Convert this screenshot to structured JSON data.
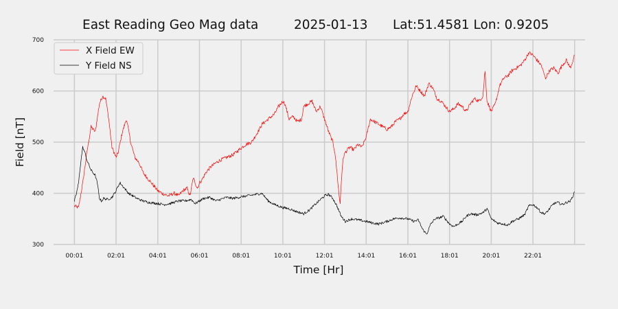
{
  "chart_data": {
    "type": "line",
    "title_parts": [
      "East Reading Geo Mag data",
      "2025-01-13",
      "Lat:51.4581  Lon: 0.9205"
    ],
    "xlabel": "Time  [Hr]",
    "ylabel": "Field  [nT]",
    "xlim": [
      -1,
      24.5
    ],
    "ylim": [
      300,
      700
    ],
    "x_ticks": [
      0,
      2,
      4,
      6,
      8,
      10,
      12,
      14,
      16,
      18,
      20,
      22
    ],
    "x_tick_labels": [
      "00:01",
      "02:01",
      "04:01",
      "06:01",
      "08:01",
      "10:01",
      "12:01",
      "14:01",
      "16:01",
      "18:01",
      "20:01",
      "22:01"
    ],
    "extra_gridlines_x": [
      24
    ],
    "y_ticks": [
      300,
      400,
      500,
      600,
      700
    ],
    "y_tick_labels": [
      "300",
      "400",
      "500",
      "600",
      "700"
    ],
    "grid": true,
    "legend_position": "top-left",
    "series": [
      {
        "name": "X Field EW",
        "color": "#ff0000",
        "x": [
          0,
          0.2,
          0.4,
          0.6,
          0.8,
          1.0,
          1.2,
          1.35,
          1.5,
          1.65,
          1.8,
          2.0,
          2.1,
          2.3,
          2.5,
          2.7,
          2.9,
          3.1,
          3.3,
          3.5,
          3.8,
          4.0,
          4.2,
          4.5,
          4.8,
          5.0,
          5.2,
          5.4,
          5.55,
          5.7,
          5.9,
          6.0,
          6.1,
          6.3,
          6.5,
          6.8,
          7.0,
          7.3,
          7.6,
          7.9,
          8.2,
          8.5,
          8.8,
          9.0,
          9.3,
          9.6,
          9.8,
          10.0,
          10.1,
          10.2,
          10.3,
          10.5,
          10.7,
          10.9,
          11.0,
          11.2,
          11.4,
          11.6,
          11.8,
          12.0,
          12.2,
          12.4,
          12.5,
          12.6,
          12.7,
          12.75,
          12.8,
          12.9,
          13.0,
          13.2,
          13.4,
          13.6,
          13.8,
          14.0,
          14.2,
          14.4,
          14.6,
          14.8,
          15.0,
          15.2,
          15.4,
          15.6,
          15.8,
          16.0,
          16.2,
          16.4,
          16.6,
          16.8,
          17.0,
          17.2,
          17.4,
          17.6,
          17.8,
          18.0,
          18.2,
          18.4,
          18.6,
          18.8,
          19.0,
          19.2,
          19.4,
          19.6,
          19.7,
          19.8,
          20.0,
          20.2,
          20.4,
          20.6,
          20.8,
          21.0,
          21.2,
          21.4,
          21.6,
          21.8,
          22.0,
          22.2,
          22.4,
          22.6,
          22.8,
          23.0,
          23.2,
          23.4,
          23.6,
          23.8,
          24.0
        ],
        "values": [
          375,
          372,
          420,
          480,
          530,
          520,
          575,
          590,
          585,
          545,
          490,
          470,
          480,
          520,
          545,
          500,
          470,
          460,
          440,
          430,
          415,
          405,
          400,
          395,
          400,
          395,
          405,
          410,
          395,
          430,
          410,
          420,
          425,
          440,
          450,
          460,
          465,
          470,
          475,
          485,
          495,
          500,
          520,
          535,
          545,
          555,
          570,
          580,
          575,
          560,
          545,
          550,
          540,
          545,
          570,
          575,
          580,
          560,
          570,
          545,
          520,
          500,
          480,
          440,
          395,
          380,
          420,
          470,
          480,
          490,
          485,
          495,
          490,
          510,
          545,
          540,
          535,
          530,
          525,
          530,
          540,
          545,
          555,
          560,
          590,
          610,
          600,
          590,
          615,
          605,
          585,
          580,
          570,
          560,
          565,
          575,
          570,
          560,
          575,
          585,
          580,
          590,
          640,
          580,
          560,
          575,
          610,
          625,
          630,
          640,
          645,
          650,
          660,
          675,
          670,
          660,
          650,
          625,
          640,
          645,
          635,
          650,
          660,
          645,
          670
        ]
      },
      {
        "name": "Y Field NS",
        "color": "#000000",
        "x": [
          0,
          0.1,
          0.2,
          0.3,
          0.4,
          0.5,
          0.6,
          0.8,
          1.0,
          1.1,
          1.2,
          1.3,
          1.4,
          1.6,
          1.8,
          2.0,
          2.1,
          2.2,
          2.4,
          2.6,
          2.8,
          3.0,
          3.3,
          3.6,
          4.0,
          4.3,
          4.6,
          5.0,
          5.3,
          5.6,
          5.8,
          6.0,
          6.2,
          6.5,
          6.8,
          7.0,
          7.3,
          7.6,
          8.0,
          8.3,
          8.6,
          9.0,
          9.3,
          9.6,
          10.0,
          10.3,
          10.6,
          11.0,
          11.3,
          11.6,
          12.0,
          12.2,
          12.4,
          12.6,
          12.8,
          13.0,
          13.3,
          13.6,
          14.0,
          14.3,
          14.6,
          15.0,
          15.3,
          15.6,
          16.0,
          16.3,
          16.5,
          16.7,
          16.9,
          17.1,
          17.3,
          17.5,
          17.7,
          18.0,
          18.2,
          18.4,
          18.6,
          18.8,
          19.0,
          19.3,
          19.6,
          19.8,
          20.0,
          20.3,
          20.6,
          20.8,
          21.0,
          21.3,
          21.6,
          21.8,
          22.0,
          22.2,
          22.4,
          22.6,
          22.8,
          23.0,
          23.2,
          23.4,
          23.6,
          23.8,
          24.0
        ],
        "values": [
          385,
          400,
          420,
          460,
          490,
          480,
          465,
          445,
          435,
          420,
          390,
          385,
          390,
          388,
          392,
          405,
          415,
          420,
          410,
          400,
          395,
          390,
          385,
          382,
          380,
          378,
          380,
          385,
          385,
          388,
          380,
          385,
          390,
          392,
          385,
          388,
          392,
          390,
          393,
          395,
          397,
          400,
          385,
          378,
          372,
          370,
          365,
          360,
          368,
          380,
          395,
          398,
          390,
          375,
          355,
          345,
          350,
          348,
          345,
          342,
          340,
          345,
          350,
          352,
          350,
          345,
          348,
          330,
          320,
          340,
          350,
          352,
          355,
          340,
          335,
          340,
          345,
          355,
          360,
          358,
          362,
          370,
          350,
          342,
          340,
          338,
          345,
          350,
          358,
          375,
          378,
          372,
          362,
          360,
          370,
          380,
          382,
          378,
          382,
          385,
          402
        ]
      }
    ]
  }
}
